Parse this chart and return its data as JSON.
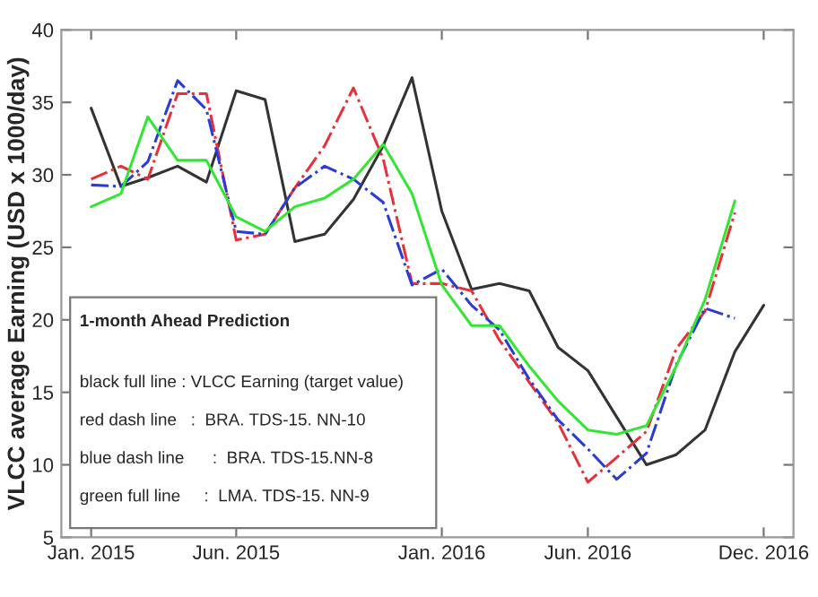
{
  "chart_data": {
    "type": "line",
    "ylabel": "VLCC average Earning (USD x 1000/day)",
    "x": [
      "2015-01",
      "2015-02",
      "2015-03",
      "2015-04",
      "2015-05",
      "2015-06",
      "2015-07",
      "2015-08",
      "2015-09",
      "2015-10",
      "2015-11",
      "2015-12",
      "2016-01",
      "2016-02",
      "2016-03",
      "2016-04",
      "2016-05",
      "2016-06",
      "2016-07",
      "2016-08",
      "2016-09",
      "2016-10",
      "2016-11",
      "2016-12"
    ],
    "series": [
      {
        "color": "#333333",
        "line_style": "solid",
        "values": [
          34.6,
          29.2,
          29.8,
          30.6,
          29.5,
          35.8,
          35.2,
          25.4,
          25.9,
          28.3,
          32.0,
          36.7,
          27.5,
          22.1,
          22.5,
          22.0,
          18.1,
          16.5,
          13.3,
          10.0,
          10.7,
          12.4,
          17.8,
          21.0
        ]
      },
      {
        "color": "#e8303a",
        "line_style": "dashed",
        "values": [
          29.7,
          30.6,
          29.7,
          35.6,
          35.6,
          25.5,
          25.9,
          29.1,
          32.0,
          36.0,
          31.1,
          22.5,
          22.5,
          22.0,
          18.6,
          15.7,
          12.9,
          8.8,
          10.5,
          12.3,
          18.0,
          20.6,
          27.4,
          null
        ]
      },
      {
        "color": "#2a3bd6",
        "line_style": "dashed",
        "values": [
          29.3,
          29.2,
          30.9,
          36.5,
          34.5,
          26.1,
          25.9,
          29.1,
          30.6,
          29.7,
          28.1,
          22.4,
          23.5,
          21.0,
          19.3,
          15.9,
          13.1,
          11.1,
          9.0,
          10.8,
          16.9,
          20.8,
          20.1,
          null
        ]
      },
      {
        "color": "#33e633",
        "line_style": "solid",
        "values": [
          27.8,
          28.7,
          34.0,
          31.0,
          31.0,
          27.1,
          26.1,
          27.8,
          28.4,
          29.7,
          32.1,
          28.7,
          22.4,
          19.6,
          19.6,
          16.8,
          14.4,
          12.4,
          12.1,
          12.7,
          16.8,
          21.4,
          28.2,
          null
        ]
      }
    ],
    "xlim": [
      "2014-12",
      "2017-01"
    ],
    "xticks": [
      {
        "value": "2015-01",
        "label": "Jan. 2015"
      },
      {
        "value": "2015-06",
        "label": "Jun. 2015"
      },
      {
        "value": "2016-01",
        "label": "Jan. 2016"
      },
      {
        "value": "2016-06",
        "label": "Jun. 2016"
      },
      {
        "value": "2016-12",
        "label": "Dec. 2016"
      }
    ],
    "ylim": [
      5,
      40
    ],
    "yticks": [
      5,
      10,
      15,
      20,
      25,
      30,
      35,
      40
    ],
    "grid": false,
    "annotations": [
      "1-month Ahead Prediction",
      "black full line : VLCC Earning (target value)",
      "red dash line   :  BRA. TDS-15. NN-10",
      "blue dash line      :  BRA. TDS-15.NN-8",
      "green full line     :  LMA. TDS-15. NN-9"
    ]
  }
}
